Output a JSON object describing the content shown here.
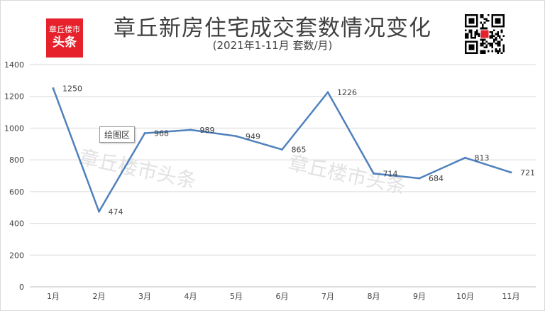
{
  "header": {
    "title": "章丘新房住宅成交套数情况变化",
    "subtitle": "(2021年1-11月  套数/月)"
  },
  "logo": {
    "line1": "章丘楼市",
    "line2": "头条",
    "color": "#e6212c"
  },
  "watermarks": [
    "章丘楼市头条",
    "章丘楼市头条"
  ],
  "tooltip": {
    "label": "绘图区"
  },
  "chart_data": {
    "type": "line",
    "categories": [
      "1月",
      "2月",
      "3月",
      "4月",
      "5月",
      "6月",
      "7月",
      "8月",
      "9月",
      "10月",
      "11月"
    ],
    "series": [
      {
        "values": [
          1250,
          474,
          968,
          989,
          949,
          865,
          1226,
          714,
          684,
          813,
          721
        ]
      }
    ],
    "title": "章丘新房住宅成交套数情况变化",
    "subtitle": "(2021年1-11月  套数/月)",
    "ylim": [
      0,
      1400
    ],
    "yticks": [
      0,
      200,
      400,
      600,
      800,
      1000,
      1200,
      1400
    ],
    "grid": true,
    "legend": "none",
    "data_labels": true,
    "color": "#4f81bd"
  }
}
